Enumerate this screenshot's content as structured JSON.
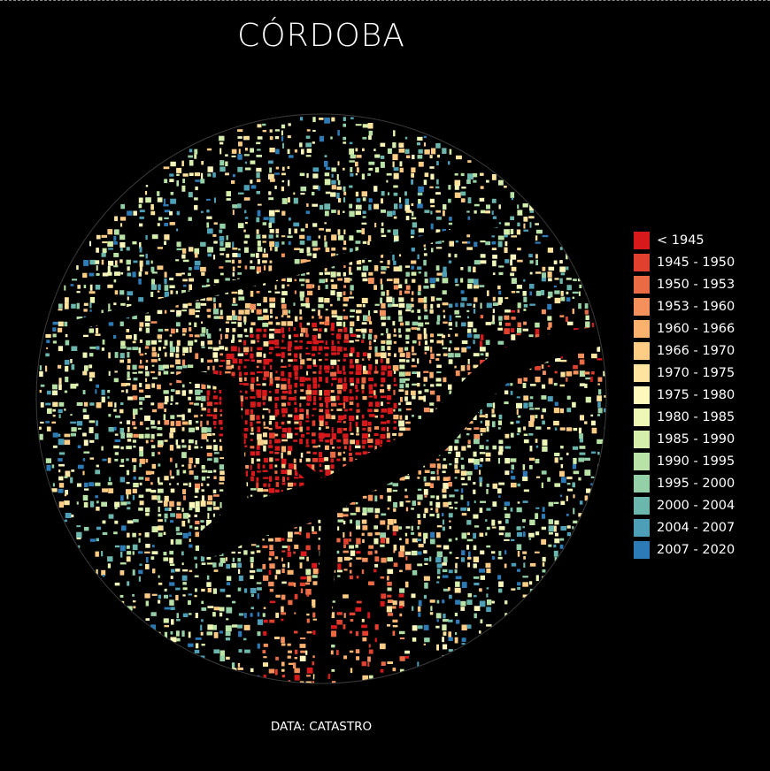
{
  "title": "CÓRDOBA",
  "source": "DATA: CATASTRO",
  "map": {
    "background": "#000000",
    "outline_color": "#3a3a3a",
    "river_color": "#000000"
  },
  "legend": {
    "items": [
      {
        "label": "< 1945",
        "color": "#d7191c"
      },
      {
        "label": "1945 - 1950",
        "color": "#e0402d"
      },
      {
        "label": "1950 - 1953",
        "color": "#ea6a44"
      },
      {
        "label": "1953 - 1960",
        "color": "#f4905c"
      },
      {
        "label": "1960 - 1966",
        "color": "#fbb26f"
      },
      {
        "label": "1966 - 1970",
        "color": "#fdcd86"
      },
      {
        "label": "1970 - 1975",
        "color": "#ffe4a0"
      },
      {
        "label": "1975 - 1980",
        "color": "#fff8bd"
      },
      {
        "label": "1980 - 1985",
        "color": "#eff7b6"
      },
      {
        "label": "1985 - 1990",
        "color": "#d6eeab"
      },
      {
        "label": "1990 - 1995",
        "color": "#b9e3a6"
      },
      {
        "label": "1995 - 2000",
        "color": "#93cfa7"
      },
      {
        "label": "2000 - 2004",
        "color": "#6cb7ad"
      },
      {
        "label": "2004 - 2007",
        "color": "#4c9fb6"
      },
      {
        "label": "2007 - 2020",
        "color": "#2c7bb6"
      }
    ]
  }
}
